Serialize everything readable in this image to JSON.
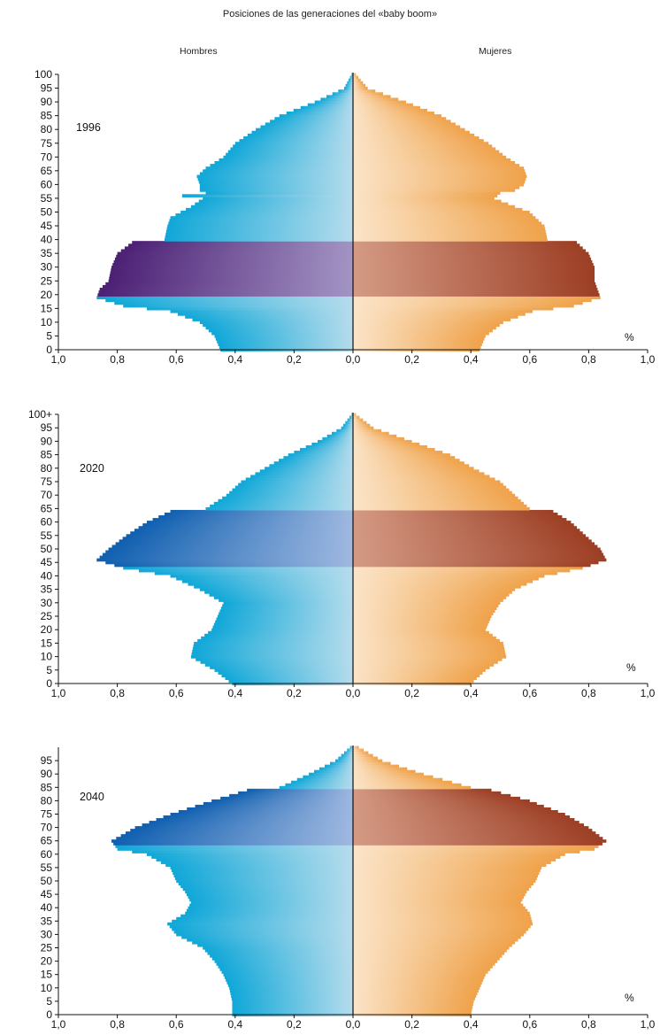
{
  "title": "Posiciones de las generaciones del «baby boom»",
  "colors": {
    "men_light": "#b5dcec",
    "men_dark": "#0fa7d8",
    "men_boom_dark": "#4c2075",
    "men_boom_light": "#a394c4",
    "men_boom_dark_2": "#0f5fb0",
    "men_boom_light_2": "#9fb8e0",
    "women_light": "#fbe4c8",
    "women_dark": "#efa24a",
    "women_boom_light": "#d49a84",
    "women_boom_dark": "#9c3e24",
    "axis": "#111111"
  },
  "chart_data": [
    {
      "type": "population-pyramid",
      "title": "Posiciones de las generaciones del «baby boom»",
      "year": "1996",
      "left_label": "Hombres",
      "right_label": "Mujeres",
      "unit_label": "%",
      "age_tick_labels": [
        "0",
        "5",
        "10",
        "15",
        "20",
        "25",
        "30",
        "35",
        "40",
        "45",
        "50",
        "55",
        "60",
        "65",
        "70",
        "75",
        "80",
        "85",
        "90",
        "95",
        "100"
      ],
      "x_tick_labels": [
        "1,0",
        "0,8",
        "0,6",
        "0,4",
        "0,2",
        "0,0",
        "0,2",
        "0,4",
        "0,6",
        "0,8",
        "1,0"
      ],
      "xlim": [
        0,
        1.0
      ],
      "age_range": [
        0,
        100
      ],
      "boom_ages": [
        20,
        39
      ],
      "men_profile": [
        [
          0,
          0.45
        ],
        [
          5,
          0.47
        ],
        [
          10,
          0.52
        ],
        [
          14,
          0.62
        ],
        [
          16,
          0.78
        ],
        [
          19,
          0.87
        ],
        [
          22,
          0.86
        ],
        [
          25,
          0.83
        ],
        [
          30,
          0.82
        ],
        [
          35,
          0.8
        ],
        [
          39,
          0.75
        ],
        [
          40,
          0.64
        ],
        [
          45,
          0.63
        ],
        [
          48,
          0.62
        ],
        [
          52,
          0.55
        ],
        [
          55,
          0.51
        ],
        [
          56,
          0.58
        ],
        [
          57,
          0.5
        ],
        [
          58,
          0.52
        ],
        [
          60,
          0.52
        ],
        [
          63,
          0.53
        ],
        [
          66,
          0.5
        ],
        [
          70,
          0.44
        ],
        [
          75,
          0.4
        ],
        [
          80,
          0.33
        ],
        [
          85,
          0.25
        ],
        [
          90,
          0.13
        ],
        [
          95,
          0.03
        ],
        [
          100,
          0.005
        ]
      ],
      "women_profile": [
        [
          0,
          0.43
        ],
        [
          5,
          0.45
        ],
        [
          10,
          0.51
        ],
        [
          14,
          0.61
        ],
        [
          16,
          0.75
        ],
        [
          19,
          0.84
        ],
        [
          22,
          0.83
        ],
        [
          25,
          0.82
        ],
        [
          30,
          0.82
        ],
        [
          35,
          0.8
        ],
        [
          39,
          0.76
        ],
        [
          40,
          0.66
        ],
        [
          45,
          0.65
        ],
        [
          50,
          0.6
        ],
        [
          52,
          0.55
        ],
        [
          55,
          0.48
        ],
        [
          57,
          0.5
        ],
        [
          58,
          0.55
        ],
        [
          60,
          0.58
        ],
        [
          63,
          0.59
        ],
        [
          66,
          0.58
        ],
        [
          70,
          0.52
        ],
        [
          75,
          0.46
        ],
        [
          80,
          0.38
        ],
        [
          85,
          0.3
        ],
        [
          90,
          0.18
        ],
        [
          95,
          0.05
        ],
        [
          100,
          0.01
        ]
      ]
    },
    {
      "type": "population-pyramid",
      "year": "2020",
      "unit_label": "%",
      "age_tick_labels": [
        "0",
        "5",
        "10",
        "15",
        "20",
        "25",
        "30",
        "35",
        "40",
        "45",
        "50",
        "55",
        "60",
        "65",
        "70",
        "75",
        "80",
        "85",
        "90",
        "95",
        "100+"
      ],
      "x_tick_labels": [
        "1,0",
        "0,8",
        "0,6",
        "0,4",
        "0,2",
        "0,0",
        "0,2",
        "0,4",
        "0,6",
        "0,8",
        "1,0"
      ],
      "xlim": [
        0,
        1.0
      ],
      "age_range": [
        0,
        100
      ],
      "boom_ages": [
        44,
        64
      ],
      "men_profile": [
        [
          0,
          0.41
        ],
        [
          5,
          0.47
        ],
        [
          10,
          0.55
        ],
        [
          15,
          0.54
        ],
        [
          20,
          0.48
        ],
        [
          25,
          0.46
        ],
        [
          30,
          0.44
        ],
        [
          35,
          0.52
        ],
        [
          40,
          0.62
        ],
        [
          43,
          0.78
        ],
        [
          46,
          0.87
        ],
        [
          50,
          0.83
        ],
        [
          55,
          0.77
        ],
        [
          60,
          0.7
        ],
        [
          64,
          0.62
        ],
        [
          65,
          0.5
        ],
        [
          70,
          0.43
        ],
        [
          75,
          0.38
        ],
        [
          80,
          0.3
        ],
        [
          85,
          0.22
        ],
        [
          90,
          0.12
        ],
        [
          95,
          0.04
        ],
        [
          100,
          0.005
        ]
      ],
      "women_profile": [
        [
          0,
          0.4
        ],
        [
          5,
          0.45
        ],
        [
          10,
          0.52
        ],
        [
          15,
          0.51
        ],
        [
          20,
          0.45
        ],
        [
          25,
          0.47
        ],
        [
          30,
          0.5
        ],
        [
          35,
          0.55
        ],
        [
          40,
          0.65
        ],
        [
          43,
          0.78
        ],
        [
          46,
          0.86
        ],
        [
          50,
          0.84
        ],
        [
          55,
          0.79
        ],
        [
          60,
          0.74
        ],
        [
          64,
          0.68
        ],
        [
          65,
          0.6
        ],
        [
          70,
          0.55
        ],
        [
          75,
          0.5
        ],
        [
          80,
          0.41
        ],
        [
          85,
          0.33
        ],
        [
          90,
          0.2
        ],
        [
          95,
          0.07
        ],
        [
          100,
          0.01
        ]
      ]
    },
    {
      "type": "population-pyramid",
      "year": "2040",
      "unit_label": "%",
      "age_tick_labels": [
        "0",
        "5",
        "10",
        "15",
        "20",
        "25",
        "30",
        "35",
        "40",
        "45",
        "50",
        "55",
        "60",
        "65",
        "70",
        "75",
        "80",
        "85",
        "90",
        "95"
      ],
      "x_tick_labels": [
        "1,0",
        "0,8",
        "0,6",
        "0,4",
        "0,2",
        "0,0",
        "0,2",
        "0,4",
        "0,6",
        "0,8",
        "1,0"
      ],
      "xlim": [
        0,
        1.0
      ],
      "age_range": [
        0,
        100
      ],
      "boom_ages": [
        64,
        84
      ],
      "men_profile": [
        [
          0,
          0.41
        ],
        [
          5,
          0.41
        ],
        [
          10,
          0.42
        ],
        [
          15,
          0.44
        ],
        [
          20,
          0.47
        ],
        [
          25,
          0.51
        ],
        [
          30,
          0.6
        ],
        [
          34,
          0.63
        ],
        [
          38,
          0.57
        ],
        [
          42,
          0.55
        ],
        [
          46,
          0.57
        ],
        [
          50,
          0.6
        ],
        [
          55,
          0.62
        ],
        [
          60,
          0.7
        ],
        [
          62,
          0.8
        ],
        [
          65,
          0.82
        ],
        [
          70,
          0.74
        ],
        [
          75,
          0.62
        ],
        [
          80,
          0.48
        ],
        [
          84,
          0.36
        ],
        [
          85,
          0.25
        ],
        [
          90,
          0.15
        ],
        [
          95,
          0.06
        ],
        [
          100,
          0.01
        ]
      ],
      "women_profile": [
        [
          0,
          0.4
        ],
        [
          5,
          0.41
        ],
        [
          10,
          0.43
        ],
        [
          15,
          0.45
        ],
        [
          20,
          0.49
        ],
        [
          25,
          0.53
        ],
        [
          30,
          0.58
        ],
        [
          34,
          0.61
        ],
        [
          38,
          0.6
        ],
        [
          42,
          0.57
        ],
        [
          46,
          0.59
        ],
        [
          50,
          0.62
        ],
        [
          55,
          0.64
        ],
        [
          60,
          0.72
        ],
        [
          62,
          0.82
        ],
        [
          65,
          0.86
        ],
        [
          70,
          0.8
        ],
        [
          75,
          0.72
        ],
        [
          80,
          0.6
        ],
        [
          84,
          0.47
        ],
        [
          85,
          0.4
        ],
        [
          90,
          0.24
        ],
        [
          95,
          0.1
        ],
        [
          100,
          0.02
        ]
      ]
    }
  ]
}
